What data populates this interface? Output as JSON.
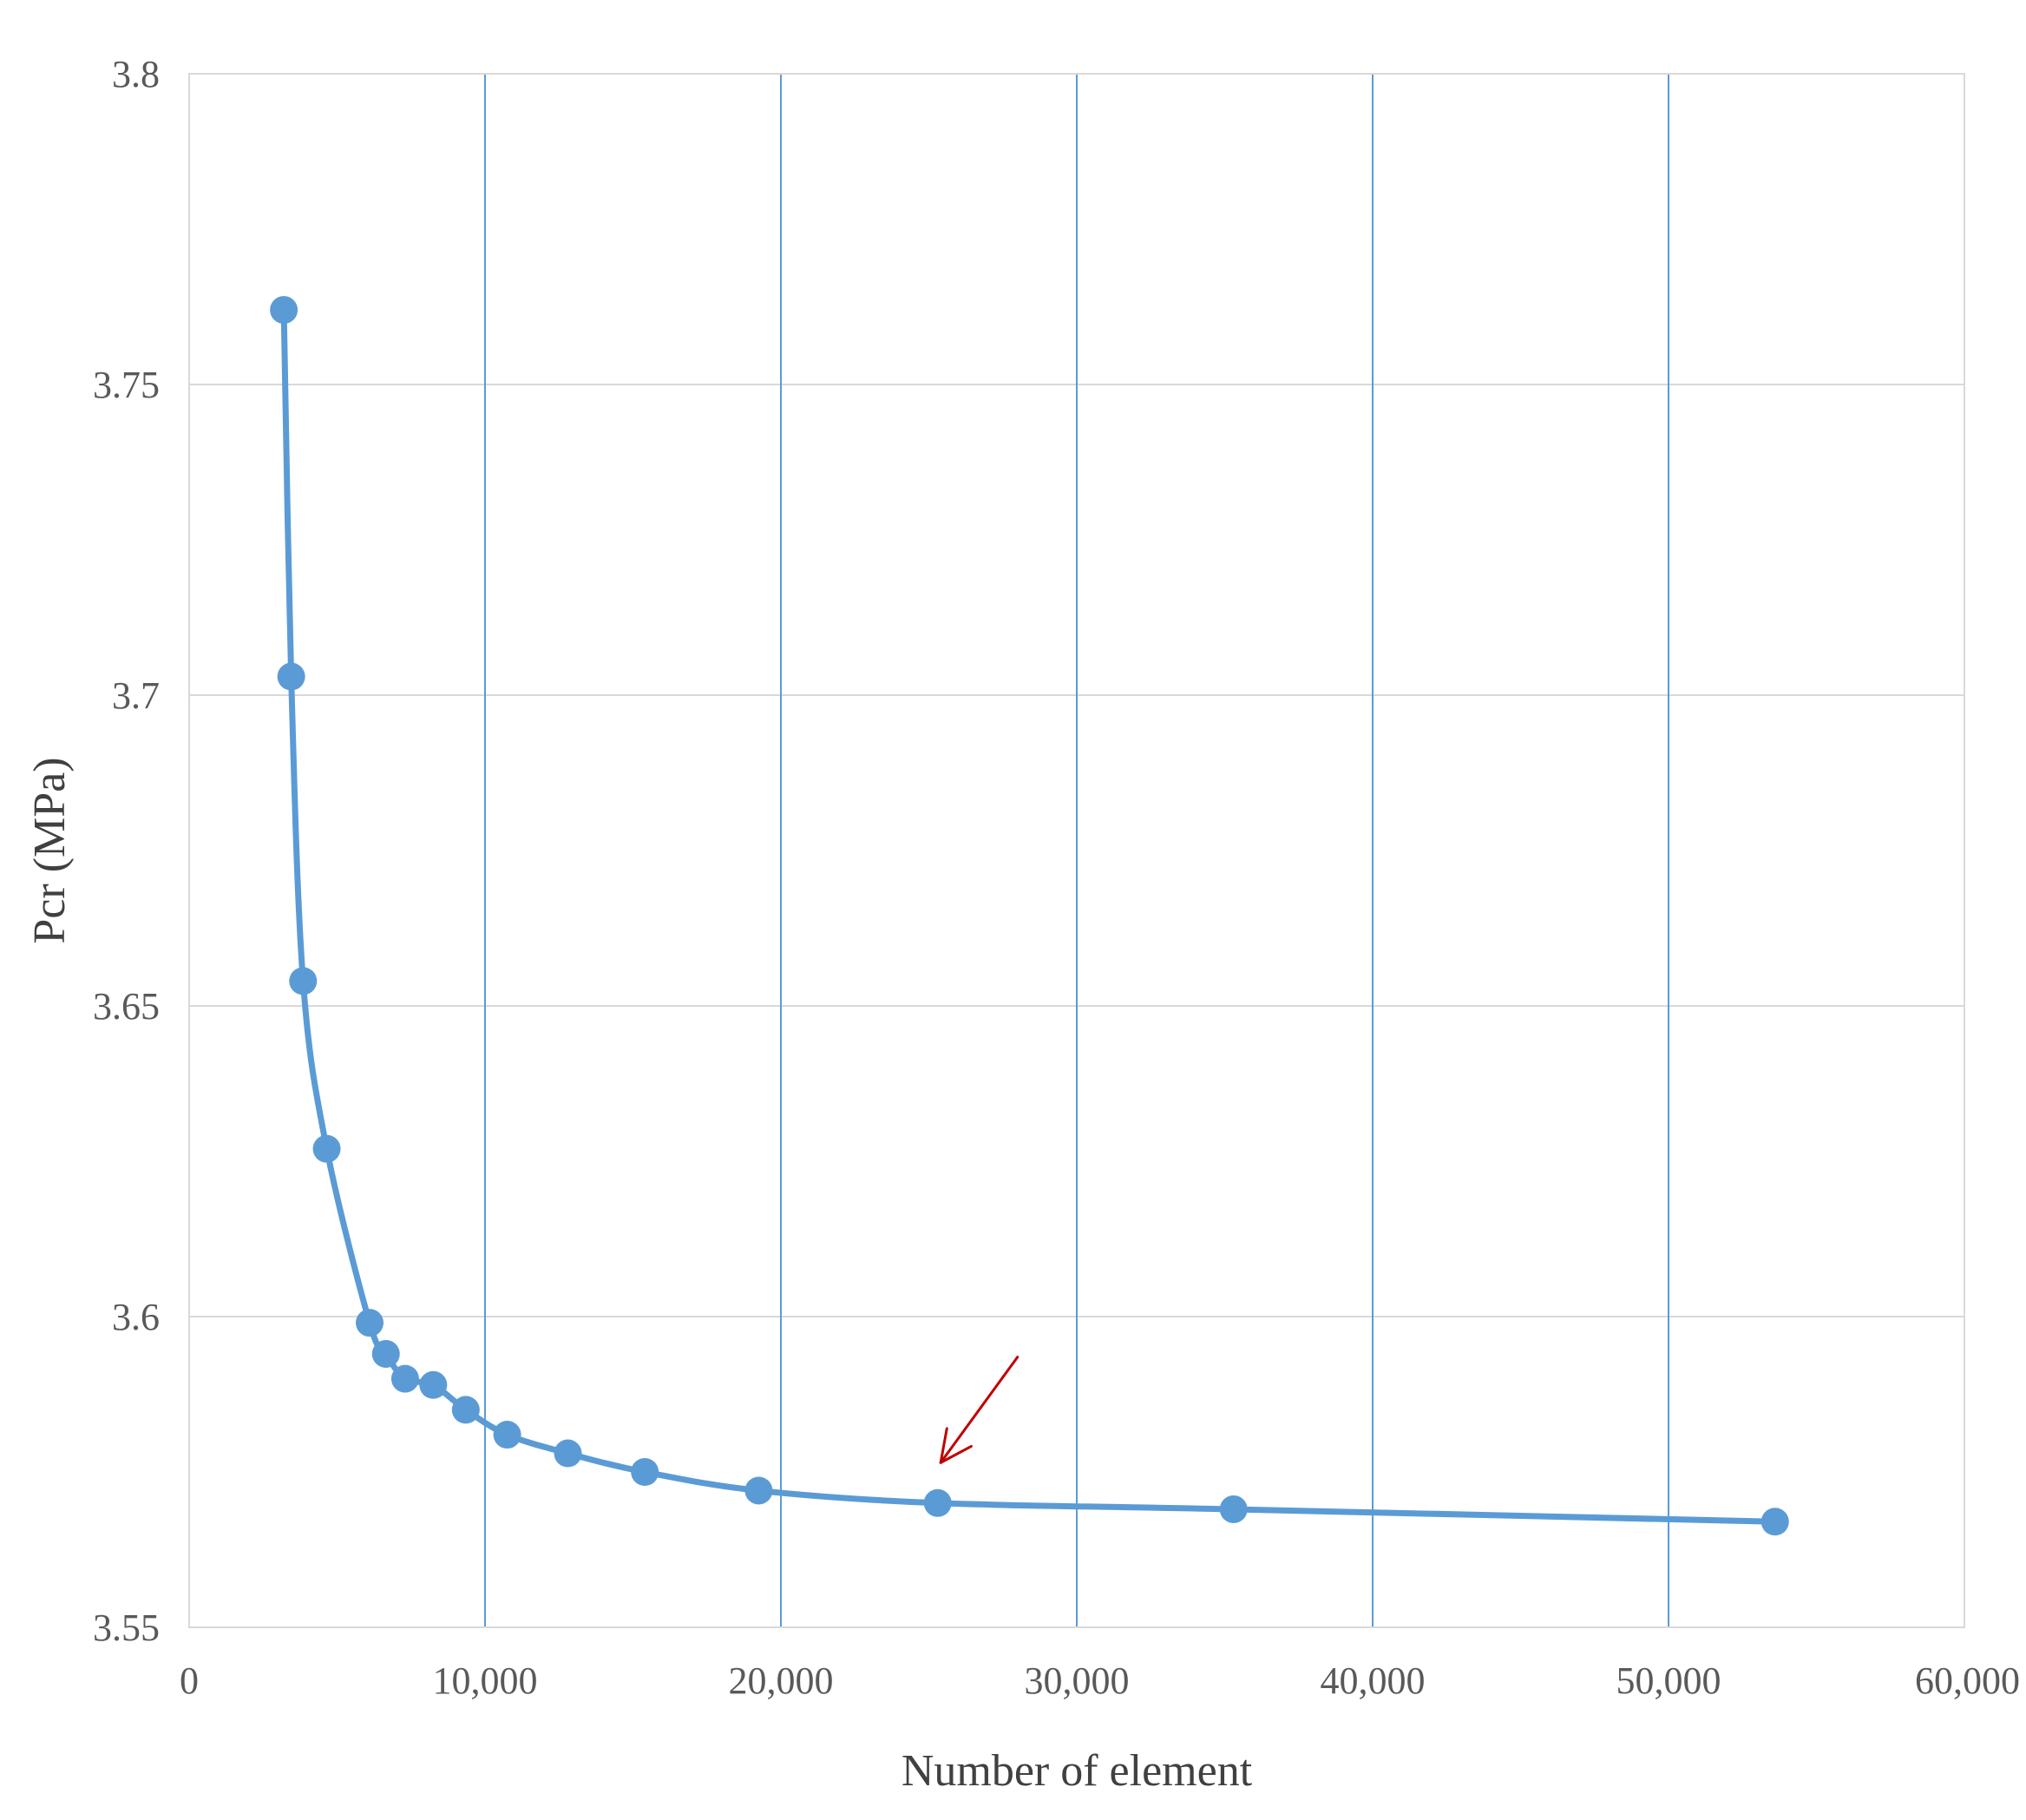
{
  "chart_data": {
    "type": "line",
    "xlabel": "Number of element",
    "ylabel": "Pcr (MPa)",
    "xlim": [
      0,
      60000
    ],
    "ylim": [
      3.55,
      3.8
    ],
    "x_ticks": [
      0,
      10000,
      20000,
      30000,
      40000,
      50000,
      60000
    ],
    "x_tick_labels": [
      "0",
      "10,000",
      "20,000",
      "30,000",
      "40,000",
      "50,000",
      "60,000"
    ],
    "y_ticks": [
      3.55,
      3.6,
      3.65,
      3.7,
      3.75,
      3.8
    ],
    "y_tick_labels": [
      "3.55",
      "3.6",
      "3.65",
      "3.7",
      "3.75",
      "3.8"
    ],
    "grid": {
      "vertical": true,
      "horizontal": true
    },
    "series": [
      {
        "color": "#5b9bd5",
        "marker": "circle",
        "smooth": true,
        "x": [
          3200,
          3450,
          3850,
          4650,
          6100,
          6650,
          7300,
          8250,
          9350,
          10750,
          12800,
          15400,
          19250,
          25300,
          35300,
          53600
        ],
        "y": [
          3.762,
          3.703,
          3.654,
          3.627,
          3.599,
          3.594,
          3.59,
          3.589,
          3.585,
          3.581,
          3.578,
          3.575,
          3.572,
          3.57,
          3.569,
          3.567
        ]
      }
    ],
    "annotations": [
      {
        "type": "arrow",
        "color": "#c00000",
        "from": [
          28000,
          3.5935
        ],
        "to": [
          25400,
          3.5765
        ]
      }
    ]
  }
}
